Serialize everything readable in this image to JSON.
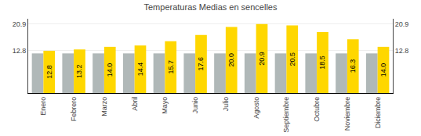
{
  "chart_data": {
    "type": "bar",
    "title": "Temperaturas Medias en sencelles",
    "categories": [
      "Enero",
      "Febrero",
      "Marzo",
      "Abril",
      "Mayo",
      "Junio",
      "Julio",
      "Agosto",
      "Septiembre",
      "Octubre",
      "Noviembre",
      "Diciembre"
    ],
    "series": [
      {
        "color": "#B0B8B8",
        "values": [
          12.0,
          12.0,
          12.0,
          12.0,
          12.0,
          12.0,
          12.0,
          12.0,
          12.0,
          12.0,
          12.0,
          12.0
        ]
      },
      {
        "color": "#FFD700",
        "values": [
          12.8,
          13.2,
          14.0,
          14.4,
          15.7,
          17.6,
          20.0,
          20.9,
          20.5,
          18.5,
          16.3,
          14.0
        ],
        "value_labels": [
          "12.8",
          "13.2",
          "14.0",
          "14.4",
          "15.7",
          "17.6",
          "20.0",
          "20.9",
          "20.5",
          "18.5",
          "16.3",
          "14.0"
        ],
        "data_labels": true
      }
    ],
    "ylim": [
      0,
      22.5
    ],
    "yticks": [
      12.8,
      20.9
    ],
    "y2lim": [
      0,
      22.5
    ],
    "y2ticks": [
      12.8,
      20.9
    ],
    "grid": true
  }
}
